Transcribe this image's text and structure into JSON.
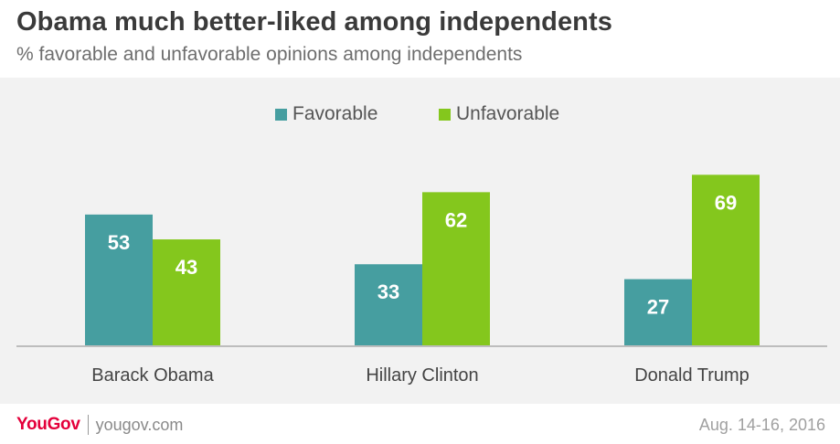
{
  "title": "Obama much better-liked among independents",
  "subtitle": "% favorable and unfavorable opinions among independents",
  "colors": {
    "favorable": "#469ea0",
    "unfavorable": "#84c71d",
    "baseline": "#bdbdbd"
  },
  "chart_data": {
    "type": "bar",
    "categories": [
      "Barack Obama",
      "Hillary Clinton",
      "Donald Trump"
    ],
    "series": [
      {
        "name": "Favorable",
        "values": [
          53,
          33,
          27
        ]
      },
      {
        "name": "Unfavorable",
        "values": [
          43,
          62,
          69
        ]
      }
    ],
    "ylim": [
      0,
      70
    ],
    "grid": false,
    "legend_position": "top-center"
  },
  "footer": {
    "brand": "YouGov",
    "url": "yougov.com",
    "date": "Aug. 14-16, 2016"
  }
}
